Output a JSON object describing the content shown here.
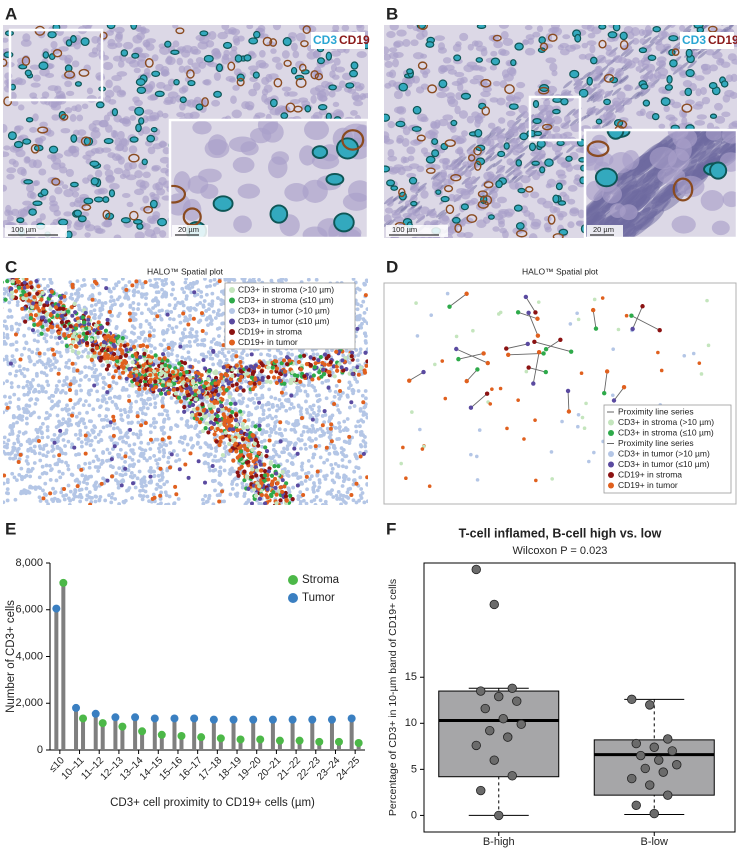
{
  "panel_labels": [
    "A",
    "B",
    "C",
    "D",
    "E",
    "F"
  ],
  "micrographs": [
    {
      "markers": [
        {
          "text": "CD3",
          "color": "#2aa6d3"
        },
        {
          "text": "CD19",
          "color": "#8b1a1a"
        }
      ],
      "scale_bars": [
        "100 µm",
        "20 µm"
      ]
    },
    {
      "markers": [
        {
          "text": "CD3",
          "color": "#2aa6d3"
        },
        {
          "text": "CD19",
          "color": "#8b1a1a"
        }
      ],
      "scale_bars": [
        "100 µm",
        "20 µm"
      ]
    }
  ],
  "spatial_plots": [
    {
      "title": "HALO™ Spatial plot",
      "legend": [
        {
          "label": "CD3+ in stroma (>10 µm)",
          "color": "#c4e5bd",
          "marker": "dot"
        },
        {
          "label": "CD3+ in stroma (≤10 µm)",
          "color": "#2eaa4a",
          "marker": "dot"
        },
        {
          "label": "CD3+ in tumor (>10 µm)",
          "color": "#b4c6e6",
          "marker": "dot"
        },
        {
          "label": "CD3+ in tumor (≤10 µm)",
          "color": "#5a4aa0",
          "marker": "dot"
        },
        {
          "label": "CD19+ in stroma",
          "color": "#8b1212",
          "marker": "dot"
        },
        {
          "label": "CD19+ in tumor",
          "color": "#e0601e",
          "marker": "dot"
        }
      ]
    },
    {
      "title": "HALO™ Spatial plot",
      "legend": [
        {
          "label": "Proximity line series",
          "color": "#666666",
          "marker": "line"
        },
        {
          "label": "CD3+ in stroma (>10 µm)",
          "color": "#c4e5bd",
          "marker": "dot"
        },
        {
          "label": "CD3+ in stroma (≤10 µm)",
          "color": "#2eaa4a",
          "marker": "dot"
        },
        {
          "label": "Proximity line series",
          "color": "#666666",
          "marker": "line"
        },
        {
          "label": "CD3+ in tumor (>10 µm)",
          "color": "#b4c6e6",
          "marker": "dot"
        },
        {
          "label": "CD3+ in tumor (≤10 µm)",
          "color": "#5a4aa0",
          "marker": "dot"
        },
        {
          "label": "CD19+ in stroma",
          "color": "#8b1212",
          "marker": "dot"
        },
        {
          "label": "CD19+ in tumor",
          "color": "#e0601e",
          "marker": "dot"
        }
      ]
    }
  ],
  "chart_data": [
    {
      "type": "lollipop",
      "x_label": "CD3+ cell proximity to CD19+ cells (µm)",
      "y_label": "Number of CD3+ cells",
      "categories": [
        "≤10",
        "10–11",
        "11–12",
        "12–13",
        "13–14",
        "14–15",
        "15–16",
        "16–17",
        "17–18",
        "18–19",
        "19–20",
        "20–21",
        "21–22",
        "22–23",
        "23–24",
        "24–25"
      ],
      "series": [
        {
          "name": "Stroma",
          "color": "#4cb848",
          "values": [
            7150,
            1350,
            1150,
            1000,
            800,
            650,
            600,
            550,
            500,
            450,
            450,
            400,
            400,
            350,
            350,
            300
          ]
        },
        {
          "name": "Tumor",
          "color": "#3a7fc1",
          "values": [
            6050,
            1800,
            1550,
            1400,
            1400,
            1350,
            1350,
            1350,
            1300,
            1300,
            1300,
            1300,
            1300,
            1300,
            1300,
            1350
          ]
        }
      ],
      "stem_color": "#7f7f7f",
      "ylim": [
        0,
        8000
      ],
      "yticks": [
        0,
        {
          "value": 2000,
          "label": "2,000"
        },
        {
          "value": 4000,
          "label": "4,000"
        },
        {
          "value": 6000,
          "label": "6,000"
        },
        {
          "value": 8000,
          "label": "8,000"
        }
      ]
    },
    {
      "type": "box",
      "title": "T-cell inflamed, B-cell high vs. low",
      "subtitle": "Wilcoxon P = 0.023",
      "y_label": "Percentage of CD3+ in 10-µm band of CD19+ cells",
      "box_color": "#a6a6a8",
      "point_color": "#6b6b6b",
      "ylim": [
        -1.8,
        27.4
      ],
      "yticks": [
        0,
        5,
        10,
        15
      ],
      "groups": [
        {
          "name": "B-high",
          "whisker_low": 0,
          "q1": 4.2,
          "median": 10.3,
          "q3": 13.5,
          "whisker_high": 13.8,
          "points": [
            26.7,
            22.9,
            13.8,
            13.5,
            12.9,
            12.4,
            11.6,
            10.5,
            9.9,
            9.2,
            8.5,
            7.6,
            6.0,
            4.3,
            2.7,
            0
          ]
        },
        {
          "name": "B-low",
          "whisker_low": 0.1,
          "q1": 2.2,
          "median": 6.6,
          "q3": 8.2,
          "whisker_high": 12.6,
          "points": [
            12.6,
            12.0,
            8.3,
            7.8,
            7.4,
            7.0,
            6.5,
            6.0,
            5.5,
            5.1,
            4.7,
            4.0,
            3.3,
            2.2,
            1.1,
            0.2
          ]
        }
      ]
    }
  ]
}
